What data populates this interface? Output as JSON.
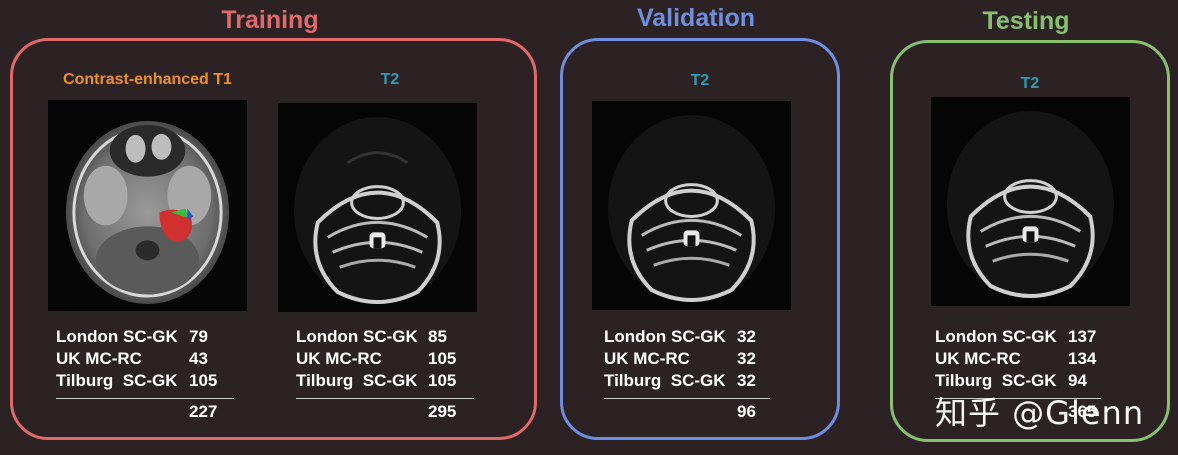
{
  "colors": {
    "training": "#e06a6a",
    "validation": "#6f8ee0",
    "testing": "#88c070",
    "t1_label": "#f0901c",
    "t2_label": "#2a9db8",
    "background": "#2c2224"
  },
  "training": {
    "title": "Training",
    "t1": {
      "label": "Contrast-enhanced T1",
      "rows": [
        {
          "name": "London SC-GK",
          "value": "79"
        },
        {
          "name": "UK MC-RC",
          "value": "43"
        },
        {
          "name": "Tilburg  SC-GK",
          "value": "105"
        }
      ],
      "total": "227"
    },
    "t2": {
      "label": "T2",
      "rows": [
        {
          "name": "London SC-GK",
          "value": "85"
        },
        {
          "name": "UK MC-RC",
          "value": "105"
        },
        {
          "name": "Tilburg  SC-GK",
          "value": "105"
        }
      ],
      "total": "295"
    }
  },
  "validation": {
    "title": "Validation",
    "t2": {
      "label": "T2",
      "rows": [
        {
          "name": "London SC-GK",
          "value": "32"
        },
        {
          "name": "UK MC-RC",
          "value": "32"
        },
        {
          "name": "Tilburg  SC-GK",
          "value": "32"
        }
      ],
      "total": "96"
    }
  },
  "testing": {
    "title": "Testing",
    "t2": {
      "label": "T2",
      "rows": [
        {
          "name": "London SC-GK",
          "value": "137"
        },
        {
          "name": "UK MC-RC",
          "value": "134"
        },
        {
          "name": "Tilburg  SC-GK",
          "value": "94"
        }
      ],
      "total": "365"
    }
  },
  "watermark": "知乎 @Glenn"
}
